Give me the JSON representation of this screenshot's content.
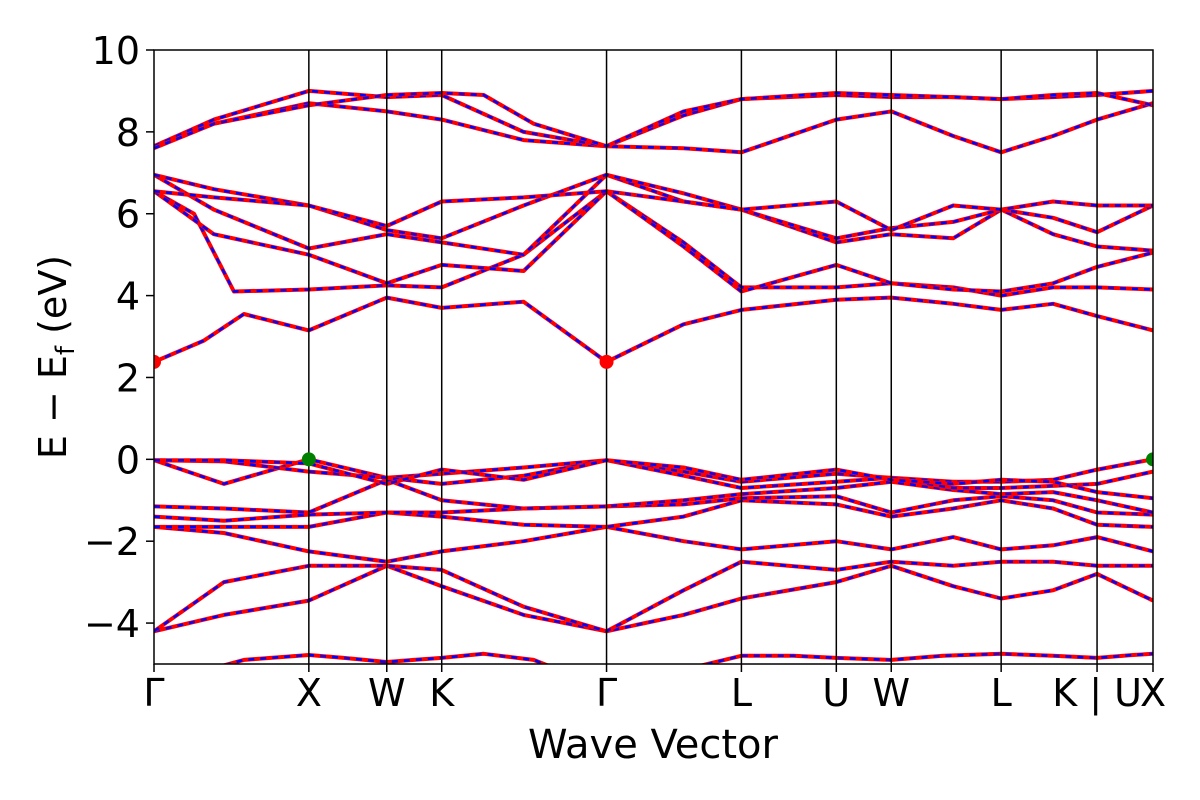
{
  "chart_data": {
    "type": "line",
    "title": "",
    "xlabel": "Wave Vector",
    "ylabel": "E − E",
    "ylabel_sub": "f",
    "ylabel_unit": " (eV)",
    "ylim": [
      -5,
      10
    ],
    "yticks": [
      -4,
      -2,
      0,
      2,
      4,
      6,
      8,
      10
    ],
    "ytick_labels": [
      "−4",
      "−2",
      "0",
      "2",
      "4",
      "6",
      "8",
      "10"
    ],
    "xlim": [
      0,
      1
    ],
    "kpoints": [
      {
        "label": "Γ",
        "x": 0.0
      },
      {
        "label": "X",
        "x": 0.155
      },
      {
        "label": "W",
        "x": 0.233
      },
      {
        "label": "K",
        "x": 0.288
      },
      {
        "label": "Γ",
        "x": 0.453
      },
      {
        "label": "L",
        "x": 0.588
      },
      {
        "label": "U",
        "x": 0.683
      },
      {
        "label": "W",
        "x": 0.738
      },
      {
        "label": "L",
        "x": 0.848
      },
      {
        "label": "K | U",
        "x": 0.944
      },
      {
        "label": "X",
        "x": 1.0
      }
    ],
    "grid": false,
    "series_style": {
      "color_primary": "#ff0000",
      "color_secondary": "#0000ff",
      "secondary_dashed": true
    },
    "marker_colors": {
      "cbm": "#ff0000",
      "vbm": "#008000"
    },
    "cbm_points": [
      {
        "x": 0.0,
        "y": 2.38
      },
      {
        "x": 0.453,
        "y": 2.38
      }
    ],
    "vbm_points": [
      {
        "x": 0.155,
        "y": 0.0
      },
      {
        "x": 1.0,
        "y": 0.0
      }
    ],
    "bands": [
      {
        "x": [
          0,
          0.06,
          0.09,
          0.155,
          0.19,
          0.233,
          0.26,
          0.288,
          0.33,
          0.38,
          0.453,
          0.52,
          0.588,
          0.64,
          0.683,
          0.738,
          0.79,
          0.848,
          0.9,
          0.944,
          0.98,
          1.0
        ],
        "y": [
          -5.3,
          -5.1,
          -4.9,
          -4.78,
          -4.85,
          -4.95,
          -4.9,
          -4.85,
          -4.75,
          -4.9,
          -5.6,
          -5.2,
          -4.8,
          -4.8,
          -4.85,
          -4.9,
          -4.8,
          -4.75,
          -4.8,
          -4.85,
          -4.78,
          -4.75
        ]
      },
      {
        "x": [
          0,
          0.07,
          0.155,
          0.233,
          0.288,
          0.37,
          0.453,
          0.53,
          0.588,
          0.683,
          0.738,
          0.8,
          0.848,
          0.9,
          0.944,
          1.0
        ],
        "y": [
          -4.2,
          -3.8,
          -3.45,
          -2.6,
          -3.1,
          -3.8,
          -4.2,
          -3.8,
          -3.4,
          -3.0,
          -2.6,
          -3.1,
          -3.4,
          -3.2,
          -2.8,
          -3.45
        ]
      },
      {
        "x": [
          0,
          0.07,
          0.155,
          0.233,
          0.288,
          0.37,
          0.453,
          0.53,
          0.588,
          0.683,
          0.738,
          0.8,
          0.848,
          0.9,
          0.944,
          1.0
        ],
        "y": [
          -4.2,
          -3.0,
          -2.6,
          -2.6,
          -2.7,
          -3.6,
          -4.2,
          -3.2,
          -2.5,
          -2.7,
          -2.5,
          -2.6,
          -2.5,
          -2.5,
          -2.6,
          -2.6
        ]
      },
      {
        "x": [
          0,
          0.07,
          0.155,
          0.233,
          0.288,
          0.37,
          0.453,
          0.53,
          0.588,
          0.683,
          0.738,
          0.8,
          0.848,
          0.9,
          0.944,
          1.0
        ],
        "y": [
          -1.65,
          -1.8,
          -2.25,
          -2.5,
          -2.25,
          -2.0,
          -1.65,
          -2.0,
          -2.2,
          -2.0,
          -2.2,
          -1.9,
          -2.2,
          -2.1,
          -1.9,
          -2.25
        ]
      },
      {
        "x": [
          0,
          0.07,
          0.155,
          0.233,
          0.288,
          0.37,
          0.453,
          0.53,
          0.588,
          0.683,
          0.738,
          0.8,
          0.848,
          0.9,
          0.944,
          1.0
        ],
        "y": [
          -1.65,
          -1.65,
          -1.65,
          -1.3,
          -1.4,
          -1.6,
          -1.65,
          -1.4,
          -1.0,
          -1.1,
          -1.4,
          -1.2,
          -1.0,
          -1.2,
          -1.6,
          -1.65
        ]
      },
      {
        "x": [
          0,
          0.07,
          0.155,
          0.233,
          0.288,
          0.37,
          0.453,
          0.53,
          0.588,
          0.683,
          0.738,
          0.8,
          0.848,
          0.9,
          0.944,
          1.0
        ],
        "y": [
          -1.4,
          -1.5,
          -1.35,
          -1.3,
          -1.3,
          -1.2,
          -1.15,
          -1.1,
          -0.95,
          -0.9,
          -1.3,
          -1.0,
          -0.9,
          -1.0,
          -1.3,
          -1.35
        ]
      },
      {
        "x": [
          0,
          0.07,
          0.155,
          0.233,
          0.288,
          0.37,
          0.453,
          0.53,
          0.588,
          0.683,
          0.738,
          0.8,
          0.848,
          0.9,
          0.944,
          1.0
        ],
        "y": [
          -1.15,
          -1.2,
          -1.3,
          -0.5,
          -1.0,
          -1.2,
          -1.15,
          -1.0,
          -0.85,
          -0.7,
          -0.55,
          -0.75,
          -0.85,
          -0.8,
          -1.0,
          -1.3
        ]
      },
      {
        "x": [
          0,
          0.07,
          0.155,
          0.233,
          0.288,
          0.37,
          0.453,
          0.53,
          0.588,
          0.683,
          0.738,
          0.8,
          0.848,
          0.9,
          0.944,
          1.0
        ],
        "y": [
          -0.02,
          -0.6,
          0.0,
          -0.45,
          -0.35,
          -0.2,
          -0.02,
          -0.3,
          -0.55,
          -0.35,
          -0.45,
          -0.55,
          -0.55,
          -0.5,
          -0.25,
          0.0
        ]
      },
      {
        "x": [
          0,
          0.07,
          0.155,
          0.233,
          0.288,
          0.37,
          0.453,
          0.53,
          0.588,
          0.683,
          0.738,
          0.8,
          0.848,
          0.9,
          0.944,
          1.0
        ],
        "y": [
          -0.02,
          -0.05,
          -0.3,
          -0.45,
          -0.6,
          -0.4,
          -0.02,
          -0.4,
          -0.7,
          -0.55,
          -0.45,
          -0.7,
          -0.7,
          -0.65,
          -0.6,
          -0.3
        ]
      },
      {
        "x": [
          0,
          0.07,
          0.155,
          0.233,
          0.288,
          0.37,
          0.453,
          0.53,
          0.588,
          0.683,
          0.738,
          0.8,
          0.848,
          0.9,
          0.944,
          1.0
        ],
        "y": [
          -0.02,
          -0.02,
          -0.1,
          -0.6,
          -0.25,
          -0.5,
          -0.02,
          -0.2,
          -0.5,
          -0.25,
          -0.5,
          -0.6,
          -0.5,
          -0.55,
          -0.8,
          -0.95
        ]
      },
      {
        "x": [
          0,
          0.05,
          0.09,
          0.155,
          0.233,
          0.288,
          0.37,
          0.453,
          0.53,
          0.588,
          0.683,
          0.738,
          0.8,
          0.848,
          0.9,
          0.944,
          1.0
        ],
        "y": [
          2.38,
          2.9,
          3.55,
          3.15,
          3.95,
          3.7,
          3.85,
          2.38,
          3.3,
          3.65,
          3.9,
          3.95,
          3.8,
          3.65,
          3.8,
          3.5,
          3.15
        ]
      },
      {
        "x": [
          0,
          0.04,
          0.08,
          0.155,
          0.233,
          0.288,
          0.37,
          0.453,
          0.53,
          0.588,
          0.683,
          0.738,
          0.8,
          0.848,
          0.9,
          0.944,
          1.0
        ],
        "y": [
          6.55,
          6.0,
          4.1,
          4.15,
          4.25,
          4.2,
          5.0,
          6.55,
          5.3,
          4.2,
          4.2,
          4.3,
          4.2,
          4.0,
          4.2,
          4.2,
          4.15
        ]
      },
      {
        "x": [
          0,
          0.06,
          0.155,
          0.233,
          0.288,
          0.37,
          0.453,
          0.53,
          0.588,
          0.683,
          0.738,
          0.8,
          0.848,
          0.9,
          0.944,
          1.0
        ],
        "y": [
          6.55,
          5.5,
          5.0,
          4.3,
          4.75,
          4.6,
          6.55,
          5.2,
          4.1,
          4.75,
          4.3,
          4.15,
          4.1,
          4.3,
          4.7,
          5.05
        ]
      },
      {
        "x": [
          0,
          0.06,
          0.155,
          0.233,
          0.288,
          0.37,
          0.453,
          0.53,
          0.588,
          0.683,
          0.738,
          0.8,
          0.848,
          0.9,
          0.944,
          1.0
        ],
        "y": [
          6.95,
          6.1,
          5.15,
          5.5,
          5.3,
          5.0,
          6.95,
          6.3,
          6.1,
          5.3,
          5.5,
          5.4,
          6.1,
          5.5,
          5.2,
          5.1
        ]
      },
      {
        "x": [
          0,
          0.06,
          0.155,
          0.233,
          0.288,
          0.37,
          0.453,
          0.53,
          0.588,
          0.683,
          0.738,
          0.8,
          0.848,
          0.9,
          0.944,
          1.0
        ],
        "y": [
          6.95,
          6.6,
          6.2,
          5.6,
          5.4,
          6.2,
          6.95,
          6.5,
          6.1,
          5.4,
          5.65,
          5.8,
          6.1,
          5.9,
          5.55,
          6.2
        ]
      },
      {
        "x": [
          0,
          0.06,
          0.155,
          0.233,
          0.288,
          0.37,
          0.453,
          0.53,
          0.588,
          0.683,
          0.738,
          0.8,
          0.848,
          0.9,
          0.944,
          1.0
        ],
        "y": [
          6.55,
          6.4,
          6.2,
          5.7,
          6.3,
          6.4,
          6.55,
          6.3,
          6.1,
          6.3,
          5.6,
          6.2,
          6.1,
          6.3,
          6.2,
          6.2
        ]
      },
      {
        "x": [
          0,
          0.06,
          0.155,
          0.233,
          0.288,
          0.37,
          0.453,
          0.53,
          0.588,
          0.683,
          0.738,
          0.8,
          0.848,
          0.9,
          0.944,
          1.0
        ],
        "y": [
          7.65,
          8.2,
          8.7,
          8.5,
          8.3,
          7.8,
          7.65,
          7.6,
          7.5,
          8.3,
          8.5,
          7.9,
          7.5,
          7.9,
          8.3,
          8.7
        ]
      },
      {
        "x": [
          0,
          0.06,
          0.155,
          0.233,
          0.288,
          0.37,
          0.453,
          0.53,
          0.588,
          0.683,
          0.738,
          0.8,
          0.848,
          0.9,
          0.944,
          1.0
        ],
        "y": [
          7.65,
          8.3,
          9.0,
          8.85,
          8.9,
          8.0,
          7.65,
          8.4,
          8.8,
          8.9,
          8.85,
          8.85,
          8.8,
          8.85,
          8.9,
          9.0
        ]
      },
      {
        "x": [
          0,
          0.06,
          0.155,
          0.233,
          0.288,
          0.33,
          0.38,
          0.453,
          0.53,
          0.588,
          0.683,
          0.738,
          0.8,
          0.848,
          0.9,
          0.944,
          1.0
        ],
        "y": [
          7.6,
          8.2,
          8.65,
          8.9,
          8.95,
          8.9,
          8.2,
          7.65,
          8.5,
          8.8,
          8.95,
          8.9,
          8.85,
          8.8,
          8.9,
          8.95,
          8.65
        ]
      }
    ]
  }
}
